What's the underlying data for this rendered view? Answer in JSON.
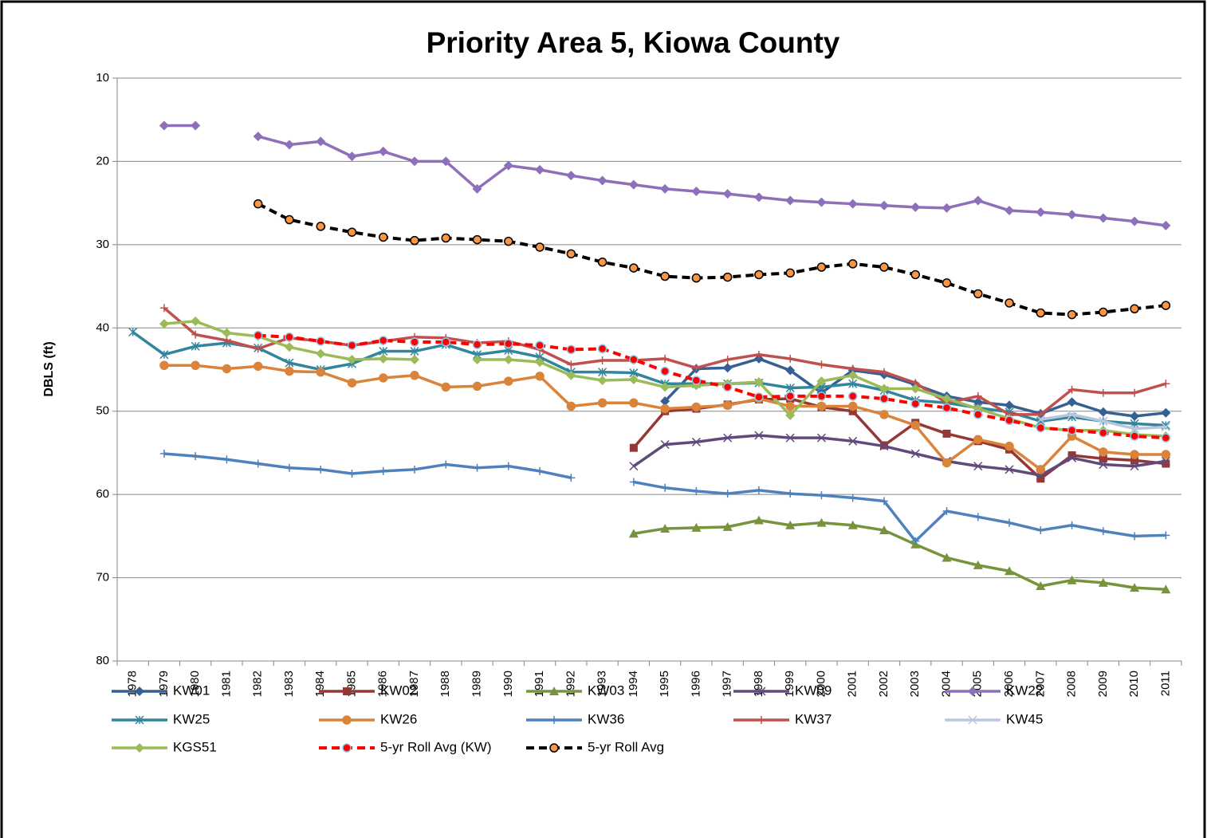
{
  "chart_data": {
    "type": "line",
    "title": "Priority Area 5, Kiowa County",
    "y_label": "DBLS (ft)",
    "categories": [
      "1978",
      "1979",
      "1980",
      "1981",
      "1982",
      "1983",
      "1984",
      "1985",
      "1986",
      "1987",
      "1988",
      "1989",
      "1990",
      "1991",
      "1992",
      "1993",
      "1994",
      "1995",
      "1996",
      "1997",
      "1998",
      "1999",
      "2000",
      "2001",
      "2002",
      "2003",
      "2004",
      "2005",
      "2006",
      "2007",
      "2008",
      "2009",
      "2010",
      "2011"
    ],
    "ylim": [
      10,
      80
    ],
    "y_reversed": true,
    "yticks": [
      10,
      20,
      30,
      40,
      50,
      60,
      70,
      80
    ],
    "grid": true,
    "series": [
      {
        "name": "KW01",
        "color": "#376092",
        "marker": "diamond",
        "values": [
          null,
          null,
          null,
          null,
          null,
          null,
          null,
          null,
          null,
          null,
          null,
          null,
          null,
          null,
          null,
          null,
          null,
          48.8,
          44.9,
          44.8,
          43.7,
          45.1,
          47.8,
          45.1,
          45.6,
          46.8,
          48.2,
          48.9,
          49.3,
          50.3,
          48.9,
          50.1,
          50.6,
          50.2
        ]
      },
      {
        "name": "KW02",
        "color": "#953735",
        "marker": "square",
        "values": [
          null,
          null,
          null,
          null,
          null,
          null,
          null,
          null,
          null,
          null,
          null,
          null,
          null,
          null,
          null,
          null,
          54.4,
          50.0,
          49.7,
          49.2,
          48.6,
          48.5,
          49.5,
          50.0,
          54.1,
          51.4,
          52.7,
          53.6,
          54.6,
          58.1,
          55.3,
          55.7,
          55.9,
          56.3
        ]
      },
      {
        "name": "KW03",
        "color": "#77933c",
        "marker": "triangle",
        "values": [
          null,
          null,
          null,
          null,
          null,
          null,
          null,
          null,
          null,
          null,
          null,
          null,
          null,
          null,
          null,
          null,
          64.7,
          64.1,
          64.0,
          63.9,
          63.1,
          63.7,
          63.4,
          63.7,
          64.3,
          66.0,
          67.6,
          68.5,
          69.2,
          71.0,
          70.3,
          70.6,
          71.2,
          71.4
        ]
      },
      {
        "name": "KW09",
        "color": "#604a7b",
        "marker": "x",
        "values": [
          null,
          null,
          null,
          null,
          null,
          null,
          null,
          null,
          null,
          null,
          null,
          null,
          null,
          null,
          null,
          null,
          56.6,
          54.0,
          53.7,
          53.2,
          52.9,
          53.2,
          53.2,
          53.6,
          54.2,
          55.1,
          56.0,
          56.6,
          57.0,
          57.7,
          55.6,
          56.4,
          56.6,
          56.0
        ]
      },
      {
        "name": "KW22",
        "color": "#8e6fba",
        "marker": "diamond",
        "values": [
          null,
          15.7,
          15.7,
          null,
          17.0,
          18.0,
          17.6,
          19.4,
          18.8,
          20.0,
          20.0,
          23.3,
          20.5,
          21.0,
          21.7,
          22.3,
          22.8,
          23.3,
          23.6,
          23.9,
          24.3,
          24.7,
          24.9,
          25.1,
          25.3,
          25.5,
          25.6,
          24.7,
          25.9,
          26.1,
          26.4,
          26.8,
          27.2,
          27.7
        ]
      },
      {
        "name": "KW25",
        "color": "#31859c",
        "marker": "asterisk",
        "values": [
          40.5,
          43.2,
          42.2,
          41.8,
          42.4,
          44.2,
          45.0,
          44.3,
          42.8,
          42.8,
          42.0,
          43.2,
          42.7,
          43.5,
          45.3,
          45.3,
          45.4,
          46.7,
          46.7,
          46.7,
          46.6,
          47.2,
          47.1,
          46.7,
          47.5,
          48.7,
          49.0,
          49.6,
          50.1,
          51.2,
          50.7,
          51.2,
          51.5,
          51.7
        ]
      },
      {
        "name": "KW26",
        "color": "#d9843a",
        "marker": "circle",
        "values": [
          null,
          44.5,
          44.5,
          44.9,
          44.6,
          45.2,
          45.3,
          46.6,
          46.0,
          45.7,
          47.1,
          47.0,
          46.4,
          45.8,
          49.4,
          49.0,
          49.0,
          49.7,
          49.5,
          49.3,
          48.5,
          49.4,
          49.4,
          49.4,
          50.4,
          51.7,
          56.2,
          53.4,
          54.2,
          57.0,
          53.0,
          54.9,
          55.2,
          55.2
        ]
      },
      {
        "name": "KW36",
        "color": "#4f81bd",
        "marker": "plus",
        "values": [
          null,
          55.1,
          55.4,
          55.8,
          56.3,
          56.8,
          57.0,
          57.5,
          57.2,
          57.0,
          56.4,
          56.8,
          56.6,
          57.2,
          58.0,
          null,
          58.5,
          59.2,
          59.6,
          59.9,
          59.5,
          59.9,
          60.1,
          60.4,
          60.8,
          65.6,
          62.0,
          62.7,
          63.4,
          64.3,
          63.7,
          64.4,
          65.0,
          64.9
        ]
      },
      {
        "name": "KW37",
        "color": "#c0504d",
        "marker": "plus",
        "values": [
          null,
          37.6,
          40.8,
          41.5,
          42.5,
          41.2,
          41.6,
          42.1,
          41.6,
          41.1,
          41.2,
          41.8,
          41.6,
          42.6,
          44.4,
          43.9,
          43.9,
          43.7,
          44.8,
          43.8,
          43.2,
          43.7,
          44.4,
          44.9,
          45.3,
          46.6,
          49.0,
          48.2,
          50.4,
          50.4,
          47.4,
          47.8,
          47.8,
          46.7
        ]
      },
      {
        "name": "KW45",
        "color": "#b9c6e0",
        "marker": "x",
        "values": [
          null,
          null,
          null,
          null,
          null,
          null,
          null,
          null,
          null,
          null,
          null,
          null,
          null,
          null,
          null,
          null,
          null,
          null,
          null,
          null,
          null,
          null,
          null,
          null,
          null,
          null,
          null,
          null,
          null,
          51.0,
          50.4,
          51.2,
          52.1,
          51.9
        ]
      },
      {
        "name": "KGS51",
        "color": "#9bbb59",
        "marker": "diamond",
        "values": [
          null,
          39.5,
          39.2,
          40.6,
          41.0,
          42.3,
          43.1,
          43.8,
          43.7,
          43.8,
          null,
          43.8,
          43.8,
          44.1,
          45.7,
          46.3,
          46.2,
          47.1,
          46.9,
          46.7,
          46.5,
          50.5,
          46.4,
          45.7,
          47.3,
          47.3,
          48.5,
          49.7,
          50.9,
          52.0,
          52.3,
          52.3,
          52.8,
          53.0
        ]
      },
      {
        "name": "5-yr Roll Avg (KW)",
        "color": "#ff0000",
        "marker": "circle",
        "marker_color": "#ff0000",
        "marker_edge": "#8fc7e8",
        "dashed": true,
        "values": [
          null,
          null,
          null,
          null,
          40.9,
          41.1,
          41.6,
          42.1,
          41.5,
          41.7,
          41.7,
          42.0,
          41.9,
          42.1,
          42.6,
          42.5,
          43.8,
          45.2,
          46.3,
          47.1,
          48.3,
          48.2,
          48.2,
          48.2,
          48.5,
          49.1,
          49.6,
          50.4,
          51.1,
          52.0,
          52.3,
          52.6,
          53.0,
          53.2
        ]
      },
      {
        "name": "5-yr Roll Avg",
        "color": "#000000",
        "marker": "circle",
        "marker_color": "#f79646",
        "marker_edge": "#000000",
        "dashed": true,
        "values": [
          null,
          null,
          null,
          null,
          25.1,
          27.0,
          27.8,
          28.5,
          29.1,
          29.5,
          29.2,
          29.4,
          29.6,
          30.3,
          31.1,
          32.1,
          32.8,
          33.8,
          34.0,
          33.9,
          33.6,
          33.4,
          32.7,
          32.3,
          32.7,
          33.6,
          34.6,
          35.9,
          37.0,
          38.2,
          38.4,
          38.1,
          37.7,
          37.3
        ]
      }
    ]
  }
}
